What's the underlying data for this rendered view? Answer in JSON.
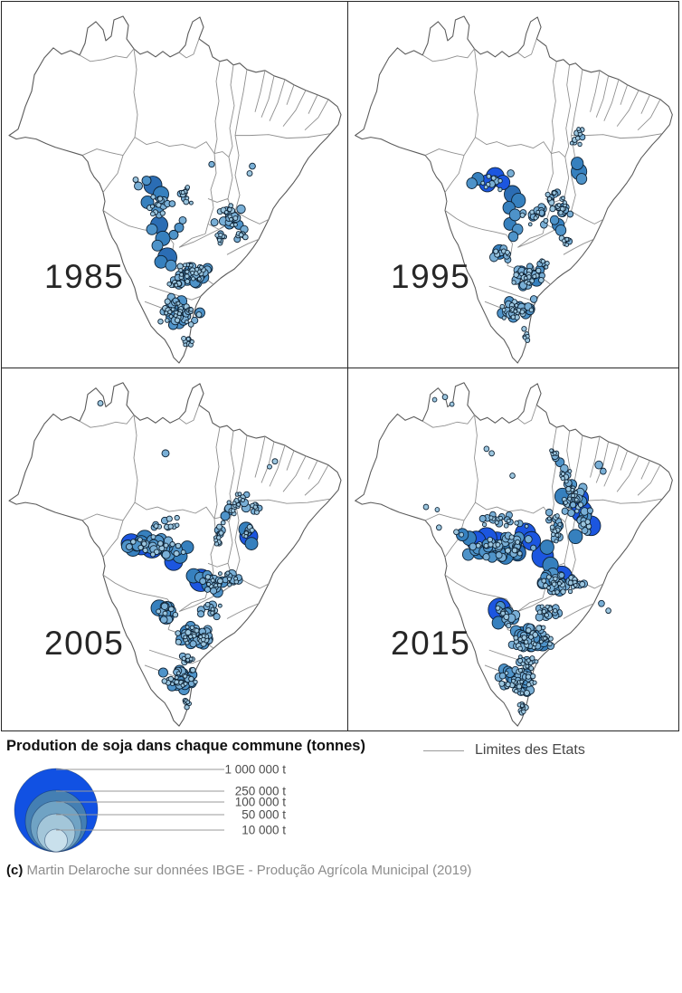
{
  "panels": [
    {
      "year": "1985",
      "bubbles": [
        [
          167,
          203,
          10
        ],
        [
          176,
          213,
          8.5
        ],
        [
          161,
          222,
          7
        ],
        [
          172,
          230,
          6.5
        ],
        [
          174,
          247,
          9.5
        ],
        [
          166,
          252,
          6
        ],
        [
          178,
          262,
          8
        ],
        [
          172,
          270,
          6
        ],
        [
          183,
          283,
          10.5
        ],
        [
          176,
          288,
          7
        ],
        [
          187,
          292,
          6
        ],
        [
          160,
          198,
          5
        ],
        [
          151,
          204,
          4.5
        ],
        [
          148,
          197,
          3
        ],
        [
          196,
          250,
          5
        ],
        [
          190,
          258,
          5
        ],
        [
          200,
          242,
          4
        ],
        [
          232,
          180,
          3.2
        ],
        [
          277,
          182,
          3.4
        ],
        [
          274,
          190,
          3
        ],
        [
          262,
          247,
          5
        ],
        [
          268,
          252,
          4.2
        ],
        [
          196,
          347,
          7.5
        ],
        [
          222,
          305,
          6.8
        ],
        [
          215,
          311,
          6
        ]
      ],
      "clusters": [
        [
          178,
          222,
          16,
          18,
          16,
          2,
          5,
          11
        ],
        [
          206,
          216,
          10,
          16,
          12,
          2,
          4,
          22
        ],
        [
          250,
          236,
          16,
          13,
          24,
          2,
          5.5,
          33
        ],
        [
          266,
          258,
          8,
          6,
          8,
          2,
          4,
          44
        ],
        [
          211,
          301,
          22,
          13,
          46,
          2,
          6.5,
          55
        ],
        [
          199,
          344,
          24,
          18,
          55,
          2,
          6,
          66
        ],
        [
          206,
          378,
          6,
          10,
          8,
          2,
          3.5,
          77
        ],
        [
          241,
          262,
          10,
          8,
          10,
          2,
          4,
          88
        ],
        [
          192,
          312,
          12,
          8,
          14,
          2,
          5,
          99
        ]
      ]
    },
    {
      "year": "1995",
      "bubbles": [
        [
          170,
          194,
          10.5,
          1
        ],
        [
          161,
          201,
          9.5,
          1
        ],
        [
          179,
          200,
          8,
          1
        ],
        [
          150,
          196,
          7
        ],
        [
          143,
          201,
          6
        ],
        [
          188,
          190,
          4
        ],
        [
          190,
          213,
          9.5
        ],
        [
          197,
          220,
          8
        ],
        [
          186,
          228,
          7
        ],
        [
          193,
          236,
          6.5
        ],
        [
          187,
          246,
          7
        ],
        [
          196,
          252,
          6
        ],
        [
          191,
          260,
          5.5
        ],
        [
          267,
          188,
          9
        ],
        [
          265,
          179,
          7
        ],
        [
          270,
          196,
          6
        ],
        [
          243,
          247,
          7
        ],
        [
          246,
          253,
          6
        ],
        [
          175,
          277,
          8
        ],
        [
          200,
          300,
          7.5
        ],
        [
          218,
          308,
          7
        ],
        [
          188,
          342,
          7
        ]
      ],
      "clusters": [
        [
          172,
          200,
          20,
          10,
          10,
          2,
          5,
          12
        ],
        [
          215,
          237,
          16,
          12,
          18,
          2,
          6,
          23
        ],
        [
          245,
          230,
          13,
          15,
          20,
          2,
          5.5,
          34
        ],
        [
          266,
          149,
          8,
          13,
          11,
          2,
          3.5,
          45
        ],
        [
          178,
          279,
          11,
          10,
          12,
          2.5,
          6.5,
          56
        ],
        [
          210,
          303,
          20,
          13,
          40,
          2,
          6.5,
          67
        ],
        [
          196,
          341,
          22,
          14,
          42,
          2,
          6,
          78
        ],
        [
          228,
          290,
          10,
          6,
          8,
          2,
          3.5,
          89
        ],
        [
          253,
          264,
          8,
          6,
          8,
          2,
          3.5,
          90
        ],
        [
          236,
          215,
          10,
          8,
          10,
          2,
          4,
          91
        ],
        [
          204,
          368,
          5,
          8,
          6,
          2,
          3,
          92
        ]
      ]
    },
    {
      "year": "2005",
      "bubbles": [
        [
          143,
          196,
          11,
          1
        ],
        [
          154,
          199,
          9.5,
          1
        ],
        [
          166,
          200,
          12,
          1
        ],
        [
          190,
          216,
          10,
          1
        ],
        [
          220,
          237,
          12.5,
          1
        ],
        [
          273,
          188,
          10,
          1
        ],
        [
          158,
          190,
          9
        ],
        [
          175,
          195,
          9
        ],
        [
          185,
          205,
          9.5
        ],
        [
          197,
          210,
          8
        ],
        [
          205,
          200,
          7
        ],
        [
          181,
          95,
          4
        ],
        [
          109,
          39,
          3
        ],
        [
          174,
          268,
          9
        ],
        [
          182,
          278,
          8
        ],
        [
          205,
          295,
          8
        ],
        [
          220,
          305,
          7.5
        ],
        [
          270,
          180,
          8
        ],
        [
          276,
          196,
          7
        ],
        [
          252,
          158,
          6
        ],
        [
          247,
          165,
          5
        ],
        [
          212,
          232,
          8
        ],
        [
          228,
          242,
          7
        ],
        [
          302,
          104,
          3
        ],
        [
          296,
          110,
          2.5
        ]
      ],
      "clusters": [
        [
          170,
          200,
          34,
          13,
          42,
          2.5,
          8,
          13
        ],
        [
          186,
          172,
          26,
          8,
          12,
          2,
          4,
          24
        ],
        [
          260,
          150,
          13,
          15,
          20,
          2,
          5,
          35
        ],
        [
          240,
          185,
          8,
          18,
          13,
          2,
          5,
          46
        ],
        [
          271,
          186,
          8,
          11,
          9,
          2,
          4,
          57
        ],
        [
          235,
          240,
          18,
          12,
          26,
          2,
          6,
          68
        ],
        [
          256,
          235,
          10,
          9,
          11,
          2,
          5,
          79
        ],
        [
          181,
          273,
          12,
          12,
          14,
          2.5,
          7,
          80
        ],
        [
          231,
          270,
          14,
          9,
          14,
          2,
          5,
          81
        ],
        [
          212,
          300,
          22,
          14,
          58,
          2,
          7,
          82
        ],
        [
          205,
          325,
          12,
          6,
          10,
          2,
          4,
          83
        ],
        [
          196,
          348,
          20,
          14,
          42,
          2,
          6,
          84
        ],
        [
          204,
          374,
          5,
          8,
          6,
          2,
          3,
          85
        ],
        [
          282,
          155,
          6,
          10,
          8,
          2,
          4,
          86
        ]
      ]
    },
    {
      "year": "2015",
      "bubbles": [
        [
          148,
          193,
          11,
          1
        ],
        [
          160,
          190,
          12,
          1
        ],
        [
          172,
          196,
          13,
          1
        ],
        [
          205,
          185,
          12,
          1
        ],
        [
          212,
          193,
          10.5,
          1
        ],
        [
          225,
          210,
          12.5,
          1
        ],
        [
          175,
          270,
          13,
          1
        ],
        [
          247,
          233,
          12,
          1
        ],
        [
          270,
          160,
          12,
          1
        ],
        [
          268,
          145,
          10,
          1
        ],
        [
          281,
          176,
          11,
          1
        ],
        [
          188,
          200,
          9
        ],
        [
          196,
          206,
          9.5
        ],
        [
          182,
          210,
          9
        ],
        [
          160,
          205,
          8
        ],
        [
          140,
          190,
          8
        ],
        [
          132,
          186,
          7
        ],
        [
          234,
          220,
          9
        ],
        [
          230,
          200,
          8
        ],
        [
          248,
          143,
          9
        ],
        [
          263,
          188,
          8
        ],
        [
          245,
          105,
          5
        ],
        [
          250,
          112,
          4.5
        ],
        [
          240,
          100,
          4
        ],
        [
          290,
          108,
          4.5
        ],
        [
          295,
          115,
          3.5
        ],
        [
          100,
          35,
          2.5
        ],
        [
          112,
          32,
          3
        ],
        [
          120,
          40,
          2.5
        ],
        [
          160,
          90,
          3
        ],
        [
          166,
          95,
          3
        ],
        [
          190,
          120,
          3
        ],
        [
          90,
          155,
          3
        ],
        [
          103,
          158,
          2.5
        ],
        [
          105,
          178,
          3
        ],
        [
          125,
          183,
          3
        ],
        [
          131,
          186,
          2.5
        ],
        [
          200,
          298,
          9
        ],
        [
          225,
          308,
          8
        ],
        [
          190,
          345,
          8
        ],
        [
          293,
          263,
          3.5
        ],
        [
          301,
          271,
          3
        ]
      ],
      "clusters": [
        [
          175,
          200,
          40,
          15,
          58,
          2.5,
          8.5,
          14
        ],
        [
          182,
          170,
          30,
          9,
          20,
          2,
          5,
          25
        ],
        [
          258,
          145,
          15,
          20,
          32,
          2,
          6,
          36
        ],
        [
          240,
          180,
          10,
          24,
          20,
          2,
          5.5,
          47
        ],
        [
          274,
          170,
          9,
          16,
          16,
          2.5,
          7,
          58
        ],
        [
          242,
          240,
          22,
          14,
          42,
          2,
          7,
          69
        ],
        [
          265,
          240,
          12,
          10,
          14,
          2,
          5,
          71
        ],
        [
          182,
          276,
          14,
          13,
          18,
          2.5,
          7.5,
          72
        ],
        [
          233,
          272,
          16,
          10,
          18,
          2,
          5,
          73
        ],
        [
          213,
          302,
          24,
          15,
          68,
          2,
          7,
          74
        ],
        [
          209,
          328,
          14,
          8,
          16,
          2,
          4.5,
          75
        ],
        [
          197,
          350,
          24,
          16,
          56,
          2,
          6.5,
          76
        ],
        [
          203,
          378,
          6,
          10,
          10,
          2,
          3.5,
          86
        ],
        [
          250,
          120,
          8,
          8,
          8,
          2,
          4,
          97
        ],
        [
          238,
          95,
          6,
          6,
          6,
          2,
          4,
          98
        ]
      ]
    }
  ],
  "colors": {
    "tiny": "#9CC6DF",
    "small": "#79AFD6",
    "medium": "#4E93C9",
    "large": "#3680BE",
    "xlarge": "#2B6DB4",
    "royal": "#1C56E0",
    "outline": "#0D2133"
  },
  "legend": {
    "title": "Prodution de soja dans chaque commune (tonnes)",
    "lines_label": "Limites des Etats",
    "sizes": [
      {
        "label": "1 000 000 t",
        "r": 46,
        "color": "#1151E3"
      },
      {
        "label": "250 000 t",
        "r": 34,
        "color": "#447FB3"
      },
      {
        "label": "100 000 t",
        "r": 28,
        "color": "#70A3C4"
      },
      {
        "label": "50 000 t",
        "r": 21,
        "color": "#A3C6D9"
      },
      {
        "label": "10 000 t",
        "r": 12.5,
        "color": "#C9E0EC"
      }
    ]
  },
  "credit": {
    "prefix": "(c)",
    "text": "Martin Delaroche sur données IBGE - Produção Agrícola Municipal (2019)"
  }
}
